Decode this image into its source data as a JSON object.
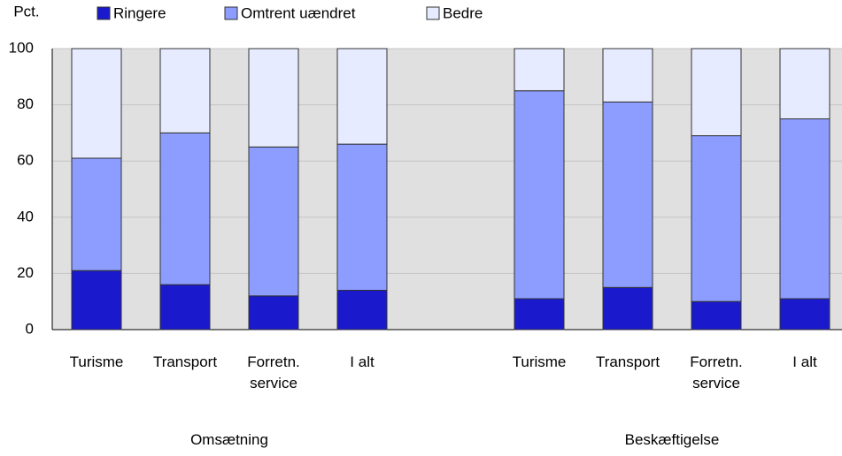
{
  "chart_data": {
    "type": "stacked_bar",
    "y_label": "Pct.",
    "categories": [
      "Turisme",
      "Transport",
      "Forretn. service",
      "I alt",
      null,
      "Turisme",
      "Transport",
      "Forretn. service",
      "I alt"
    ],
    "group_labels": [
      "Omsætning",
      "Beskæftigelse"
    ],
    "series": [
      {
        "name": "Ringere",
        "color": "#1a1acc",
        "values": [
          21,
          16,
          12,
          14,
          null,
          11,
          15,
          10,
          11
        ]
      },
      {
        "name": "Omtrent uændret",
        "color": "#8c9cff",
        "values": [
          40,
          54,
          53,
          52,
          null,
          74,
          66,
          59,
          64
        ]
      },
      {
        "name": "Bedre",
        "color": "#e6ebff",
        "values": [
          39,
          30,
          35,
          34,
          null,
          15,
          19,
          31,
          25
        ]
      }
    ],
    "ylim": [
      0,
      100
    ],
    "yticks": [
      0,
      20,
      40,
      60,
      80,
      100
    ],
    "grid": true
  }
}
